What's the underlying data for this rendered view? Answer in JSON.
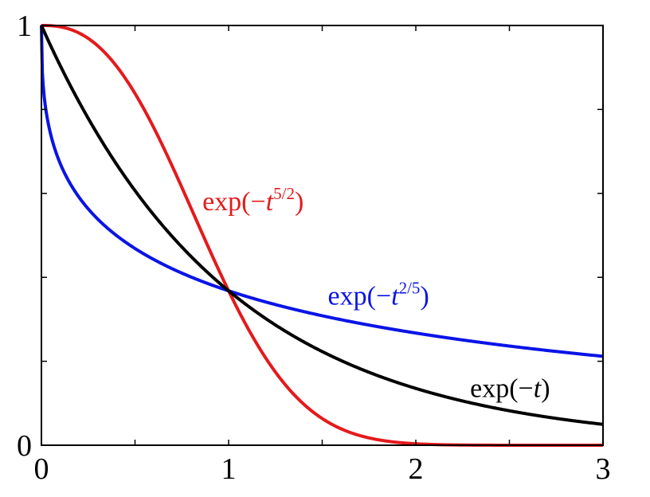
{
  "chart_data": {
    "type": "line",
    "title": "",
    "xlabel": "",
    "ylabel": "",
    "xlim": [
      0,
      3
    ],
    "ylim": [
      0,
      1
    ],
    "x_ticks": [
      0,
      1,
      2,
      3
    ],
    "x_tick_labels": [
      "0",
      "1",
      "2",
      "3"
    ],
    "y_tick_labels": [
      {
        "value": 0,
        "label": "0"
      },
      {
        "value": 1,
        "label": "1"
      }
    ],
    "minor_ticks_x": [
      0.5,
      1.5,
      2.5
    ],
    "minor_ticks_y": [
      0.2,
      0.4,
      0.6,
      0.8
    ],
    "grid": false,
    "legend": "none",
    "series": [
      {
        "function": "exp(-t^(5/2))",
        "exponent": 2.5,
        "color": "#e41a1c",
        "label_base": "exp(−",
        "label_var": "t",
        "label_sup": "5/2",
        "label_close": ")",
        "label_at": [
          0.86,
          0.56
        ]
      },
      {
        "function": "exp(-t^(2/5))",
        "exponent": 0.4,
        "color": "#0a14e6",
        "label_base": "exp(−",
        "label_var": "t",
        "label_sup": "2/5",
        "label_close": ")",
        "label_at": [
          1.53,
          0.335
        ]
      },
      {
        "function": "exp(-t)",
        "exponent": 1,
        "color": "#000000",
        "label_base": "exp(−",
        "label_var": "t",
        "label_sup": "",
        "label_close": ")",
        "label_at": [
          2.29,
          0.115
        ]
      }
    ]
  }
}
